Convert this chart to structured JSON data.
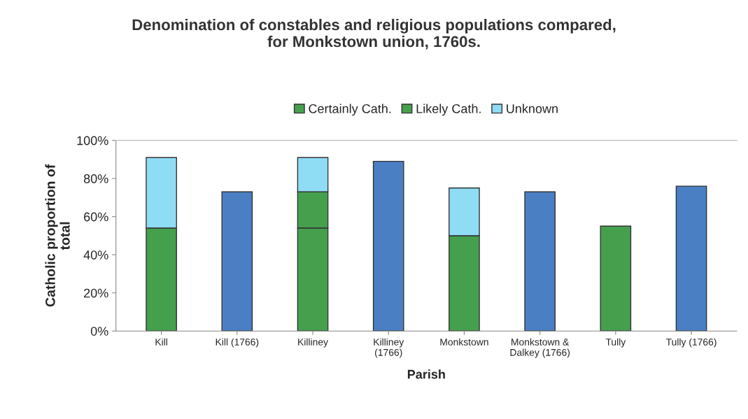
{
  "chart_data": {
    "type": "bar",
    "stacked": true,
    "title": "Denomination of constables and religious populations compared,\nfor Monkstown union, 1760s.",
    "xlabel": "Parish",
    "ylabel": "Catholic proportion of\ntotal",
    "categories": [
      "Kill",
      "Kill (1766)",
      "Killiney",
      "Killiney\n(1766)",
      "Monkstown",
      "Monkstown &\nDalkey (1766)",
      "Tully",
      "Tully (1766)"
    ],
    "series": [
      {
        "name": "Certainly Cath.",
        "color": "#45a04e",
        "values": [
          54,
          null,
          54,
          null,
          50,
          null,
          55,
          null
        ]
      },
      {
        "name": "Likely Cath.",
        "color": "#45a04e",
        "values": [
          null,
          null,
          19,
          null,
          null,
          null,
          null,
          null
        ]
      },
      {
        "name": "Unknown",
        "color": "#8fdcf5",
        "values": [
          37,
          null,
          18,
          null,
          25,
          null,
          null,
          null
        ]
      },
      {
        "color": "#4a7fc4",
        "values": [
          null,
          73,
          null,
          89,
          null,
          73,
          null,
          76
        ]
      }
    ],
    "ylim": [
      0,
      100
    ],
    "yticks": [
      {
        "value": 0,
        "label": "0%"
      },
      {
        "value": 20,
        "label": "20%"
      },
      {
        "value": 40,
        "label": "40%"
      },
      {
        "value": 60,
        "label": "60%"
      },
      {
        "value": 80,
        "label": "80%"
      },
      {
        "value": 100,
        "label": "100%"
      }
    ],
    "grid": false,
    "legend": "top"
  }
}
